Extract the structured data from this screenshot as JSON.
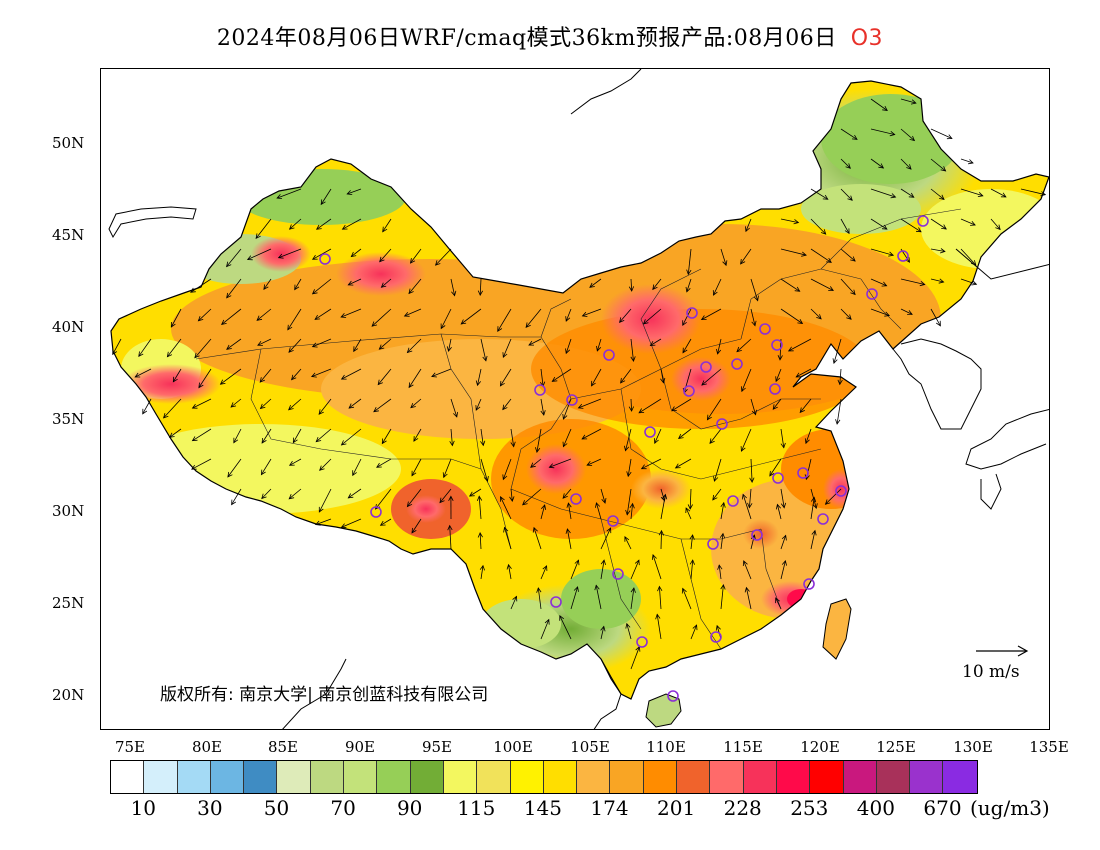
{
  "title": {
    "text": "2024年08月06日WRF/cmaq模式36km预报产品:08月06日",
    "pollutant": "O3"
  },
  "map": {
    "lat_labels": [
      "50N",
      "45N",
      "40N",
      "35N",
      "30N",
      "25N",
      "20N"
    ],
    "lon_labels": [
      "75E",
      "80E",
      "85E",
      "90E",
      "95E",
      "100E",
      "105E",
      "110E",
      "115E",
      "120E",
      "125E",
      "130E",
      "135E"
    ],
    "lon_range": [
      73,
      135
    ],
    "lat_range": [
      18,
      54
    ],
    "copyright_text": "版权所有: 南京大学| 南京创蓝科技有限公司",
    "wind_reference": "10 m/s",
    "city_marker_color": "#8b2fd6"
  },
  "colorbar": {
    "colors": [
      "#ffffff",
      "#d4effb",
      "#a4daf5",
      "#6cb6e3",
      "#3f8cc3",
      "#deebb9",
      "#bdd981",
      "#c3e27a",
      "#96cf57",
      "#72ad36",
      "#f3f75f",
      "#f1e25a",
      "#fff200",
      "#ffde00",
      "#fbb541",
      "#f9a524",
      "#ff8c00",
      "#f0632c",
      "#ff6a6a",
      "#f7325a",
      "#ff0a4a",
      "#ff0000",
      "#c9187e",
      "#a8315a",
      "#9a32cd",
      "#8a2be2"
    ],
    "labels": [
      "10",
      "30",
      "50",
      "70",
      "90",
      "115",
      "145",
      "174",
      "201",
      "228",
      "253",
      "400",
      "670"
    ],
    "unit": "(ug/m3)"
  }
}
